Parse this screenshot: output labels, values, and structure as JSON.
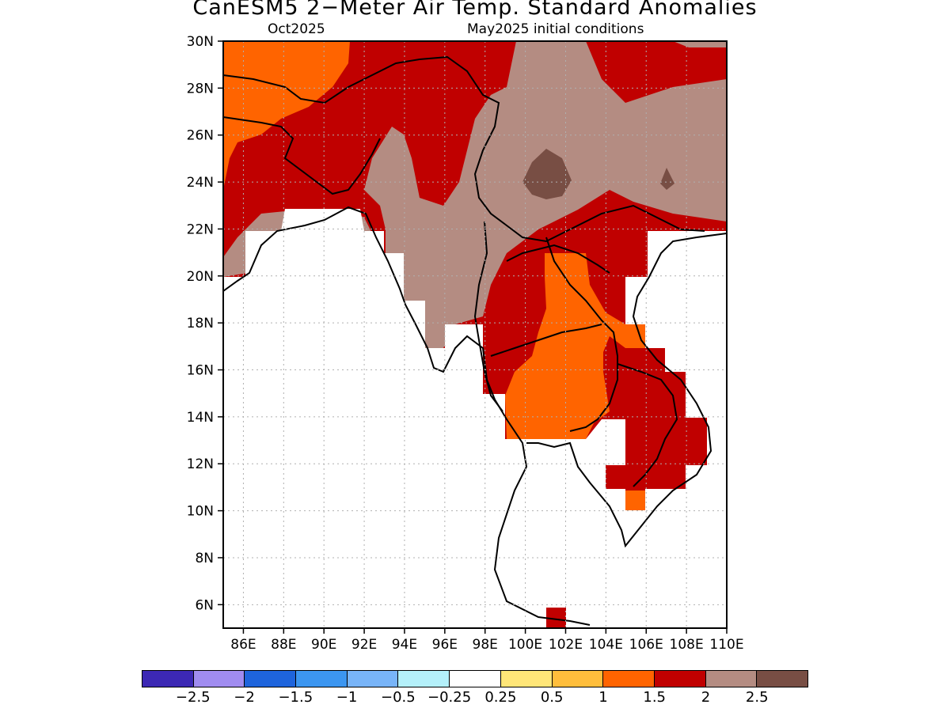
{
  "title": "CanESM5 2−Meter Air Temp. Standard Anomalies",
  "subtitle_left": "Oct2025",
  "subtitle_right": "May2025 initial conditions",
  "map": {
    "lat_labels": [
      "30N",
      "28N",
      "26N",
      "24N",
      "22N",
      "20N",
      "18N",
      "16N",
      "14N",
      "12N",
      "10N",
      "8N",
      "6N"
    ],
    "lon_labels": [
      "86E",
      "88E",
      "90E",
      "92E",
      "94E",
      "96E",
      "98E",
      "100E",
      "102E",
      "104E",
      "106E",
      "108E",
      "110E"
    ],
    "lat_range": [
      5,
      30
    ],
    "lon_range": [
      85,
      110
    ],
    "grid": "dotted"
  },
  "colorbar": {
    "colors": [
      "#3c28b4",
      "#a08cf0",
      "#1e64dc",
      "#3c96f0",
      "#78b4f8",
      "#b4f0fa",
      "#ffffff",
      "#ffe678",
      "#ffbe3c",
      "#ff6400",
      "#c00000",
      "#b48c82",
      "#784e44"
    ],
    "labels": [
      "−2.5",
      "−2",
      "−1.5",
      "−1",
      "−0.5",
      "−0.25",
      "0.25",
      "0.5",
      "1",
      "1.5",
      "2",
      "2.5"
    ]
  },
  "legend_colors": {
    "orange": "#ff6400",
    "light_orange": "#ffbe3c",
    "dark_red": "#c00000",
    "taupe": "#b48c82",
    "dark_brown": "#784e44"
  }
}
